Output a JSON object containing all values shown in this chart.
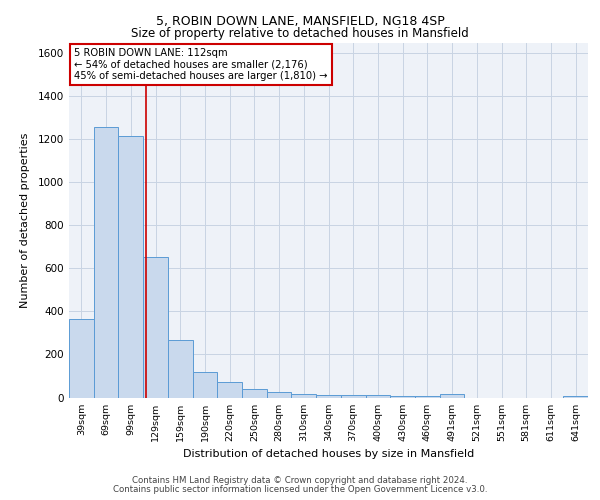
{
  "title1": "5, ROBIN DOWN LANE, MANSFIELD, NG18 4SP",
  "title2": "Size of property relative to detached houses in Mansfield",
  "xlabel": "Distribution of detached houses by size in Mansfield",
  "ylabel": "Number of detached properties",
  "footnote1": "Contains HM Land Registry data © Crown copyright and database right 2024.",
  "footnote2": "Contains public sector information licensed under the Open Government Licence v3.0.",
  "bar_labels": [
    "39sqm",
    "69sqm",
    "99sqm",
    "129sqm",
    "159sqm",
    "190sqm",
    "220sqm",
    "250sqm",
    "280sqm",
    "310sqm",
    "340sqm",
    "370sqm",
    "400sqm",
    "430sqm",
    "460sqm",
    "491sqm",
    "521sqm",
    "551sqm",
    "581sqm",
    "611sqm",
    "641sqm"
  ],
  "bar_values": [
    365,
    1255,
    1215,
    655,
    265,
    120,
    70,
    38,
    25,
    15,
    12,
    10,
    10,
    8,
    8,
    18,
    0,
    0,
    0,
    0,
    5
  ],
  "bar_color": "#c9d9ed",
  "bar_edge_color": "#5b9bd5",
  "grid_color": "#c8d4e3",
  "background_color": "#eef2f8",
  "annotation_line1": "5 ROBIN DOWN LANE: 112sqm",
  "annotation_line2": "← 54% of detached houses are smaller (2,176)",
  "annotation_line3": "45% of semi-detached houses are larger (1,810) →",
  "annotation_box_color": "#ffffff",
  "annotation_box_edge_color": "#cc0000",
  "vline_x": 2.6,
  "vline_color": "#cc0000",
  "ylim": [
    0,
    1650
  ],
  "yticks": [
    0,
    200,
    400,
    600,
    800,
    1000,
    1200,
    1400,
    1600
  ]
}
